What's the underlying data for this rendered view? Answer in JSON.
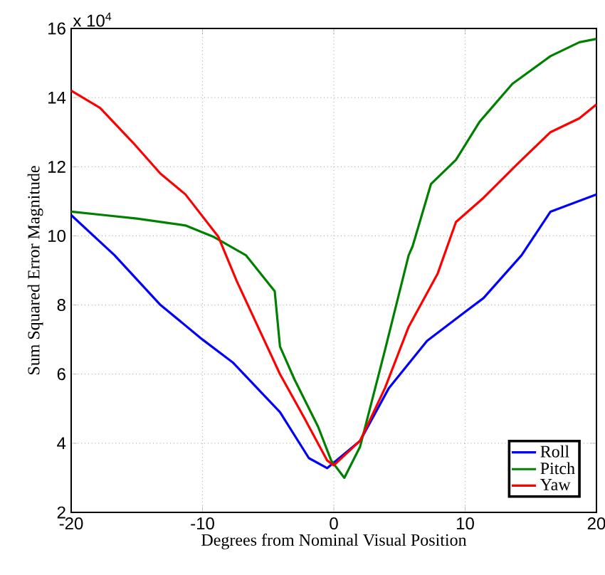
{
  "chart_data": {
    "type": "line",
    "xlabel": "Degrees from Nominal Visual Position",
    "ylabel": "Sum Squared Error Magnitude",
    "annotations": [
      "x 10$^{4}$"
    ],
    "xlim": [
      -20,
      20
    ],
    "xticks": [
      -20,
      -10,
      0,
      10,
      20
    ],
    "ylim": [
      2,
      16
    ],
    "yticks": [
      2,
      4,
      6,
      8,
      10,
      12,
      14,
      16
    ],
    "grid": true,
    "legend": "bottom right",
    "marker": "none",
    "line_style": "solid",
    "series": [
      {
        "name": "Roll",
        "color": "#0000ff",
        "x": [
          -20,
          -16.7,
          -13.2,
          -10,
          -7.7,
          -4.1,
          -1.9,
          -0.5,
          2.0,
          4.2,
          7.1,
          10,
          11.4,
          14.3,
          16.5,
          20
        ],
        "values": [
          10.6,
          9.44,
          8.0,
          7.0,
          6.34,
          4.9,
          3.57,
          3.28,
          4.07,
          5.6,
          6.96,
          7.8,
          8.2,
          9.44,
          10.7,
          11.2
        ]
      },
      {
        "name": "Pitch",
        "color": "#008000",
        "x": [
          -20,
          -17.5,
          -15,
          -11.3,
          -9.2,
          -6.7,
          -4.5,
          -4.1,
          -3.0,
          -1.2,
          -0.2,
          0.8,
          2.0,
          3.9,
          5.7,
          6.0,
          7.4,
          9.3,
          11.1,
          13.6,
          16.5,
          18.7,
          20
        ],
        "values": [
          10.7,
          10.6,
          10.5,
          10.3,
          9.98,
          9.44,
          8.4,
          6.8,
          5.85,
          4.48,
          3.5,
          3.0,
          3.9,
          6.7,
          9.44,
          9.7,
          11.5,
          12.2,
          13.3,
          14.4,
          15.2,
          15.6,
          15.7
        ]
      },
      {
        "name": "Yaw",
        "color": "#ff0000",
        "x": [
          -20,
          -17.8,
          -15.3,
          -13.2,
          -11.3,
          -8.8,
          -7.4,
          -4.1,
          -2.3,
          -0.5,
          0,
          2,
          3.9,
          5.7,
          7.9,
          9.3,
          11.4,
          13.9,
          16.5,
          18.7,
          20
        ],
        "values": [
          14.2,
          13.7,
          12.7,
          11.8,
          11.2,
          9.98,
          8.7,
          6.0,
          4.77,
          3.5,
          3.36,
          4.07,
          5.6,
          7.37,
          8.9,
          10.4,
          11.1,
          12.05,
          13.0,
          13.4,
          13.8
        ]
      }
    ]
  }
}
